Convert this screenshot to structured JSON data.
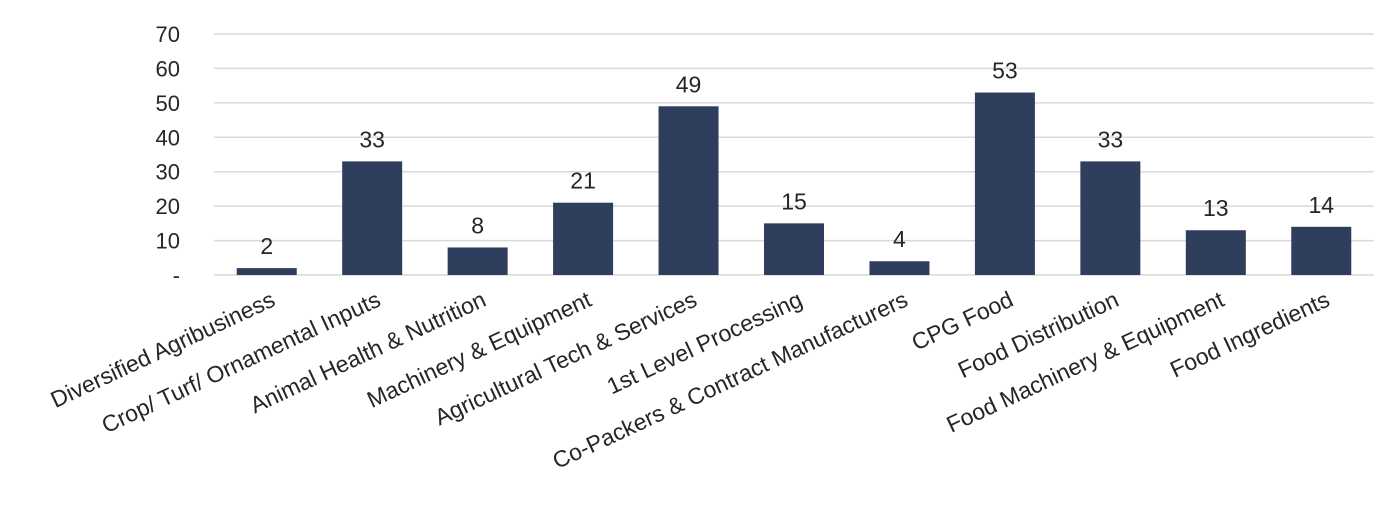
{
  "chart_data": {
    "type": "bar",
    "categories": [
      "Diversified Agribusiness",
      "Crop/ Turf/ Ornamental Inputs",
      "Animal Health & Nutrition",
      "Machinery & Equipment",
      "Agricultural Tech & Services",
      "1st Level Processing",
      "Co-Packers & Contract Manufacturers",
      "CPG Food",
      "Food Distribution",
      "Food Machinery & Equipment",
      "Food Ingredients"
    ],
    "values": [
      2,
      33,
      8,
      21,
      49,
      15,
      4,
      53,
      33,
      13,
      14
    ],
    "data_labels": [
      "2",
      "33",
      "8",
      "21",
      "49",
      "15",
      "4",
      "53",
      "33",
      "13",
      "14"
    ],
    "y_ticks": [
      "-",
      "10",
      "20",
      "30",
      "40",
      "50",
      "60",
      "70"
    ],
    "ylim": [
      0,
      70
    ],
    "grid": true,
    "legend": "none",
    "bar_color": "#2e3e5c"
  }
}
